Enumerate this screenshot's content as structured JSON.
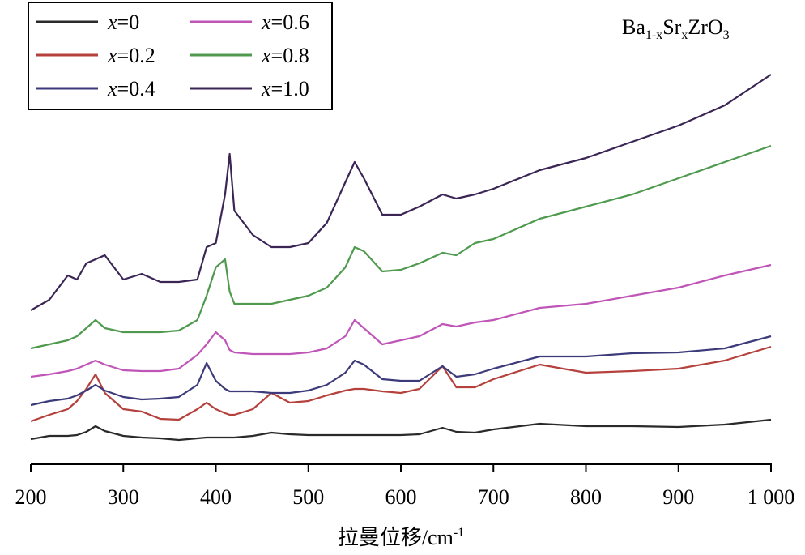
{
  "chart_data": {
    "type": "line",
    "annotation": "Ba1-xSrxZrO3",
    "xlabel": "拉曼位移/cm-1",
    "x": [
      200,
      220,
      240,
      250,
      260,
      270,
      280,
      300,
      320,
      340,
      360,
      380,
      390,
      400,
      410,
      415,
      420,
      440,
      460,
      480,
      500,
      520,
      540,
      550,
      560,
      580,
      600,
      620,
      645,
      660,
      680,
      700,
      750,
      800,
      850,
      900,
      950,
      1000
    ],
    "xlim": [
      200,
      1000
    ],
    "xticks": [
      200,
      300,
      400,
      500,
      600,
      700,
      800,
      900,
      {
        "value": 1000,
        "label": "1 000"
      }
    ],
    "ylim": [
      0,
      100
    ],
    "legend": "upper left",
    "series": [
      {
        "name": "x=0",
        "color": "#2a2a2a",
        "values": [
          6.2,
          7,
          7,
          7.2,
          8,
          9.4,
          8.2,
          7,
          6.6,
          6.4,
          6,
          6.4,
          6.6,
          6.6,
          6.6,
          6.6,
          6.6,
          7,
          7.8,
          7.4,
          7.2,
          7.2,
          7.2,
          7.2,
          7.2,
          7.2,
          7.2,
          7.4,
          9,
          8,
          7.8,
          8.6,
          10,
          9.4,
          9.4,
          9.2,
          9.8,
          11
        ]
      },
      {
        "name": "x=0.2",
        "color": "#b5413c",
        "values": [
          10.6,
          12.2,
          13.6,
          15.6,
          18.6,
          22.2,
          17.6,
          13.6,
          13,
          11.2,
          11,
          13.6,
          15.2,
          13.6,
          12.6,
          12.2,
          12.2,
          13.6,
          17.6,
          15.2,
          15.6,
          17,
          18.2,
          18.6,
          18.6,
          18,
          17.6,
          18.6,
          24.2,
          19,
          19,
          21,
          24.6,
          22.6,
          23,
          23.6,
          25.6,
          29
        ]
      },
      {
        "name": "x=0.4",
        "color": "#3c3a7a",
        "values": [
          14.6,
          15.6,
          16.2,
          17,
          18.2,
          19.6,
          18.2,
          16.6,
          16,
          16.2,
          16.6,
          19.6,
          25,
          20.6,
          18.6,
          18,
          18,
          18,
          17.6,
          17.6,
          18.2,
          19.6,
          22.6,
          25.6,
          24.6,
          21,
          20.6,
          20.6,
          24.2,
          21.6,
          22.2,
          23.6,
          26.6,
          26.6,
          27.4,
          27.6,
          28.6,
          31.6
        ]
      },
      {
        "name": "x=0.6",
        "color": "#c055b8",
        "values": [
          21.6,
          22.2,
          23,
          23.6,
          24.6,
          25.6,
          24.6,
          23.2,
          23,
          23,
          23.6,
          27,
          29.6,
          32.6,
          30.6,
          28.2,
          27.6,
          27.2,
          27.2,
          27.2,
          27.6,
          28.6,
          31.6,
          35.6,
          33.6,
          29.6,
          30.6,
          31.6,
          34.6,
          34,
          35,
          35.6,
          38.6,
          39.6,
          41.6,
          43.6,
          46.6,
          49.2
        ]
      },
      {
        "name": "x=0.8",
        "color": "#4f9a4f",
        "values": [
          28.6,
          29.6,
          30.6,
          31.6,
          33.6,
          35.6,
          33.6,
          32.6,
          32.6,
          32.6,
          33,
          35.6,
          41.6,
          48.6,
          50.6,
          42.6,
          39.6,
          39.6,
          39.6,
          40.6,
          41.6,
          43.6,
          48.6,
          53.6,
          52.6,
          47.6,
          48,
          49.6,
          52.2,
          51.6,
          54.6,
          55.6,
          60.6,
          63.6,
          66.6,
          70.6,
          74.6,
          78.6
        ]
      },
      {
        "name": "x=1.0",
        "color": "#3a2555",
        "values": [
          38,
          40.6,
          46.6,
          45.6,
          49.6,
          50.6,
          51.6,
          45.6,
          47,
          45,
          45,
          45.6,
          53.6,
          54.6,
          66.6,
          76.6,
          62.6,
          56.6,
          53.6,
          53.6,
          54.6,
          59.6,
          69.6,
          74.6,
          70.6,
          61.6,
          61.6,
          63.6,
          66.6,
          65.6,
          66.6,
          68,
          72.6,
          75.6,
          79.6,
          83.6,
          88.6,
          96.2
        ]
      }
    ]
  }
}
